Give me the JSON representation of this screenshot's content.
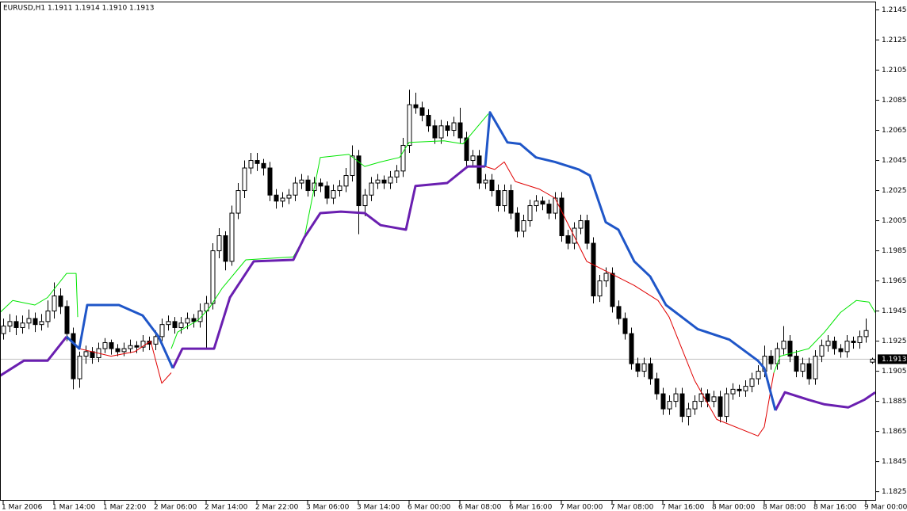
{
  "chart_data": {
    "type": "candlestick",
    "title": "EURUSD,H1  1.1911 1.1914 1.1910 1.1913",
    "last_price": 1.1913,
    "categories": [
      "1 Mar 2006",
      null,
      null,
      null,
      null,
      null,
      null,
      null,
      "1 Mar 14:00",
      null,
      null,
      null,
      null,
      null,
      null,
      null,
      "1 Mar 22:00",
      null,
      null,
      null,
      null,
      null,
      null,
      null,
      "2 Mar 06:00",
      null,
      null,
      null,
      null,
      null,
      null,
      null,
      "2 Mar 14:00",
      null,
      null,
      null,
      null,
      null,
      null,
      null,
      "2 Mar 22:00",
      null,
      null,
      null,
      null,
      null,
      null,
      null,
      "3 Mar 06:00",
      null,
      null,
      null,
      null,
      null,
      null,
      null,
      "3 Mar 14:00",
      null,
      null,
      null,
      null,
      null,
      null,
      null,
      "6 Mar 00:00",
      null,
      null,
      null,
      null,
      null,
      null,
      null,
      "6 Mar 08:00",
      null,
      null,
      null,
      null,
      null,
      null,
      null,
      "6 Mar 16:00",
      null,
      null,
      null,
      null,
      null,
      null,
      null,
      "7 Mar 00:00",
      null,
      null,
      null,
      null,
      null,
      null,
      null,
      "7 Mar 08:00",
      null,
      null,
      null,
      null,
      null,
      null,
      null,
      "7 Mar 16:00",
      null,
      null,
      null,
      null,
      null,
      null,
      null,
      "8 Mar 00:00",
      null,
      null,
      null,
      null,
      null,
      null,
      null,
      "8 Mar 08:00",
      null,
      null,
      null,
      null,
      null,
      null,
      null,
      "8 Mar 16:00",
      null,
      null,
      null,
      null,
      null,
      null,
      null,
      "9 Mar 00:00",
      null
    ],
    "ohlc": [
      [
        1.193,
        1.194,
        1.1926,
        1.1935
      ],
      [
        1.1935,
        1.1943,
        1.1931,
        1.1938
      ],
      [
        1.1938,
        1.1942,
        1.1929,
        1.1934
      ],
      [
        1.1934,
        1.1942,
        1.193,
        1.1937
      ],
      [
        1.1937,
        1.1946,
        1.1933,
        1.194
      ],
      [
        1.194,
        1.1944,
        1.1931,
        1.1936
      ],
      [
        1.1936,
        1.1943,
        1.1932,
        1.1938
      ],
      [
        1.1938,
        1.1952,
        1.1934,
        1.1945
      ],
      [
        1.1945,
        1.1964,
        1.194,
        1.1955
      ],
      [
        1.1955,
        1.196,
        1.1943,
        1.1948
      ],
      [
        1.1948,
        1.1952,
        1.1925,
        1.193
      ],
      [
        1.193,
        1.1934,
        1.1893,
        1.19
      ],
      [
        1.19,
        1.1918,
        1.1894,
        1.1915
      ],
      [
        1.1915,
        1.1922,
        1.191,
        1.1918
      ],
      [
        1.1918,
        1.1921,
        1.191,
        1.1914
      ],
      [
        1.1914,
        1.1924,
        1.1911,
        1.192
      ],
      [
        1.192,
        1.1927,
        1.1917,
        1.1924
      ],
      [
        1.1924,
        1.1926,
        1.1916,
        1.192
      ],
      [
        1.192,
        1.1923,
        1.1915,
        1.1918
      ],
      [
        1.1918,
        1.1924,
        1.1915,
        1.192
      ],
      [
        1.192,
        1.1926,
        1.1917,
        1.1922
      ],
      [
        1.1922,
        1.1925,
        1.1917,
        1.1921
      ],
      [
        1.1921,
        1.1929,
        1.1918,
        1.1925
      ],
      [
        1.1925,
        1.1928,
        1.1919,
        1.1923
      ],
      [
        1.1923,
        1.1932,
        1.1919,
        1.1928
      ],
      [
        1.1928,
        1.194,
        1.1925,
        1.1936
      ],
      [
        1.1936,
        1.1942,
        1.1932,
        1.1938
      ],
      [
        1.1938,
        1.1941,
        1.193,
        1.1934
      ],
      [
        1.1934,
        1.1941,
        1.193,
        1.1937
      ],
      [
        1.1937,
        1.1944,
        1.1933,
        1.194
      ],
      [
        1.194,
        1.1943,
        1.1934,
        1.1938
      ],
      [
        1.1938,
        1.195,
        1.1934,
        1.1945
      ],
      [
        1.1945,
        1.1955,
        1.192,
        1.195
      ],
      [
        1.195,
        1.199,
        1.1946,
        1.1985
      ],
      [
        1.1985,
        1.2,
        1.198,
        1.1995
      ],
      [
        1.1995,
        1.1998,
        1.1972,
        1.1978
      ],
      [
        1.1978,
        1.2015,
        1.1975,
        1.201
      ],
      [
        1.201,
        1.203,
        1.2006,
        1.2025
      ],
      [
        1.2025,
        1.2045,
        1.202,
        1.204
      ],
      [
        1.204,
        1.205,
        1.2036,
        1.2045
      ],
      [
        1.2045,
        1.205,
        1.2038,
        1.2043
      ],
      [
        1.2043,
        1.2046,
        1.2035,
        1.204
      ],
      [
        1.204,
        1.2044,
        1.2018,
        1.2022
      ],
      [
        1.2022,
        1.2026,
        1.2013,
        1.2018
      ],
      [
        1.2018,
        1.2024,
        1.2014,
        1.202
      ],
      [
        1.202,
        1.2026,
        1.2016,
        1.2022
      ],
      [
        1.2022,
        1.2034,
        1.2018,
        1.203
      ],
      [
        1.203,
        1.2036,
        1.2026,
        1.2032
      ],
      [
        1.2032,
        1.2035,
        1.2021,
        1.2025
      ],
      [
        1.2025,
        1.2034,
        1.2021,
        1.203
      ],
      [
        1.203,
        1.2033,
        1.2024,
        1.2028
      ],
      [
        1.2028,
        1.2031,
        1.2016,
        1.202
      ],
      [
        1.202,
        1.2029,
        1.2016,
        1.2025
      ],
      [
        1.2025,
        1.2032,
        1.2021,
        1.2028
      ],
      [
        1.2028,
        1.204,
        1.2024,
        1.2035
      ],
      [
        1.2035,
        1.2055,
        1.2031,
        1.2048
      ],
      [
        1.2048,
        1.2052,
        1.1996,
        1.2015
      ],
      [
        1.2015,
        1.2026,
        1.2008,
        1.2022
      ],
      [
        1.2022,
        1.2034,
        1.2018,
        1.203
      ],
      [
        1.203,
        1.2036,
        1.2026,
        1.2032
      ],
      [
        1.2032,
        1.2035,
        1.2026,
        1.203
      ],
      [
        1.203,
        1.2038,
        1.2026,
        1.2034
      ],
      [
        1.2034,
        1.2042,
        1.203,
        1.2038
      ],
      [
        1.2038,
        1.206,
        1.2034,
        1.2055
      ],
      [
        1.2055,
        1.2092,
        1.205,
        1.2082
      ],
      [
        1.2082,
        1.209,
        1.2076,
        1.208
      ],
      [
        1.208,
        1.2084,
        1.2071,
        1.2075
      ],
      [
        1.2075,
        1.2079,
        1.2064,
        1.2068
      ],
      [
        1.2068,
        1.2072,
        1.2056,
        1.206
      ],
      [
        1.206,
        1.2072,
        1.2056,
        1.2068
      ],
      [
        1.2068,
        1.2071,
        1.2061,
        1.2065
      ],
      [
        1.2065,
        1.2074,
        1.2061,
        1.207
      ],
      [
        1.207,
        1.208,
        1.2056,
        1.206
      ],
      [
        1.206,
        1.2064,
        1.2041,
        1.2045
      ],
      [
        1.2045,
        1.2052,
        1.2041,
        1.2048
      ],
      [
        1.2048,
        1.2052,
        1.2026,
        1.203
      ],
      [
        1.203,
        1.2036,
        1.2026,
        1.2032
      ],
      [
        1.2032,
        1.2036,
        1.2021,
        1.2025
      ],
      [
        1.2025,
        1.2029,
        1.2011,
        1.2015
      ],
      [
        1.2015,
        1.2029,
        1.2011,
        1.2025
      ],
      [
        1.2025,
        1.2029,
        1.2006,
        1.201
      ],
      [
        1.201,
        1.2014,
        1.1994,
        1.1998
      ],
      [
        1.1998,
        1.2009,
        1.1994,
        1.2005
      ],
      [
        1.2005,
        1.2019,
        1.2001,
        1.2015
      ],
      [
        1.2015,
        1.2022,
        1.2011,
        1.2018
      ],
      [
        1.2018,
        1.2021,
        1.2012,
        1.2016
      ],
      [
        1.2016,
        1.2019,
        1.2006,
        1.201
      ],
      [
        1.201,
        1.2024,
        1.2006,
        1.202
      ],
      [
        1.202,
        1.2024,
        1.1991,
        1.1995
      ],
      [
        1.1995,
        1.1999,
        1.1986,
        1.199
      ],
      [
        1.199,
        1.2004,
        1.1986,
        1.2
      ],
      [
        1.2,
        1.2009,
        1.1996,
        1.2005
      ],
      [
        1.2005,
        1.2009,
        1.1986,
        1.199
      ],
      [
        1.199,
        1.1994,
        1.195,
        1.1955
      ],
      [
        1.1955,
        1.1969,
        1.1951,
        1.1965
      ],
      [
        1.1965,
        1.1974,
        1.1961,
        1.197
      ],
      [
        1.197,
        1.1974,
        1.1944,
        1.1948
      ],
      [
        1.1948,
        1.1952,
        1.1936,
        1.194
      ],
      [
        1.194,
        1.1944,
        1.1926,
        1.193
      ],
      [
        1.193,
        1.1934,
        1.1906,
        1.191
      ],
      [
        1.191,
        1.1914,
        1.1901,
        1.1905
      ],
      [
        1.1905,
        1.1914,
        1.1901,
        1.191
      ],
      [
        1.191,
        1.1914,
        1.1896,
        1.19
      ],
      [
        1.19,
        1.1904,
        1.1886,
        1.189
      ],
      [
        1.189,
        1.1894,
        1.1876,
        1.188
      ],
      [
        1.188,
        1.1889,
        1.1876,
        1.1885
      ],
      [
        1.1885,
        1.1894,
        1.1881,
        1.189
      ],
      [
        1.189,
        1.1894,
        1.1871,
        1.1875
      ],
      [
        1.1875,
        1.1884,
        1.1869,
        1.188
      ],
      [
        1.188,
        1.1889,
        1.1876,
        1.1885
      ],
      [
        1.1885,
        1.1894,
        1.1881,
        1.189
      ],
      [
        1.189,
        1.1893,
        1.1881,
        1.1885
      ],
      [
        1.1885,
        1.1892,
        1.1881,
        1.1888
      ],
      [
        1.1888,
        1.1892,
        1.1871,
        1.1875
      ],
      [
        1.1875,
        1.1894,
        1.1871,
        1.189
      ],
      [
        1.189,
        1.1897,
        1.1886,
        1.1893
      ],
      [
        1.1893,
        1.1896,
        1.1888,
        1.1892
      ],
      [
        1.1892,
        1.1899,
        1.1888,
        1.1895
      ],
      [
        1.1895,
        1.1904,
        1.1891,
        1.19
      ],
      [
        1.19,
        1.1909,
        1.1896,
        1.1905
      ],
      [
        1.1905,
        1.1922,
        1.1901,
        1.1915
      ],
      [
        1.1915,
        1.1919,
        1.1906,
        1.191
      ],
      [
        1.191,
        1.1924,
        1.1906,
        1.192
      ],
      [
        1.192,
        1.1935,
        1.1916,
        1.1925
      ],
      [
        1.1925,
        1.1929,
        1.1911,
        1.1915
      ],
      [
        1.1915,
        1.1919,
        1.1901,
        1.1905
      ],
      [
        1.1905,
        1.1914,
        1.1901,
        1.191
      ],
      [
        1.191,
        1.1914,
        1.1896,
        1.19
      ],
      [
        1.19,
        1.1919,
        1.1896,
        1.1915
      ],
      [
        1.1915,
        1.1926,
        1.1911,
        1.1922
      ],
      [
        1.1922,
        1.1929,
        1.1918,
        1.1925
      ],
      [
        1.1925,
        1.1928,
        1.1916,
        1.192
      ],
      [
        1.192,
        1.1923,
        1.1914,
        1.1918
      ],
      [
        1.1918,
        1.1929,
        1.1914,
        1.1925
      ],
      [
        1.1925,
        1.1928,
        1.192,
        1.1924
      ],
      [
        1.1924,
        1.1932,
        1.192,
        1.1928
      ],
      [
        1.1928,
        1.194,
        1.1924,
        1.1932
      ],
      [
        1.1911,
        1.1914,
        1.191,
        1.1913
      ]
    ],
    "up_color": "#ffffff",
    "down_color": "#000000",
    "lines": [
      {
        "color": "#00e600",
        "width": 1,
        "x": [
          -0.5,
          1.5,
          5,
          7,
          10,
          11.5,
          11.75,
          19,
          26.5,
          27.5,
          30.75,
          32.5,
          34.5,
          38.25,
          45.75,
          47.5,
          50,
          54.5,
          57,
          59.5,
          62.5,
          64,
          69.5,
          72.5,
          76.5,
          99,
          121.5,
          122.5,
          127,
          129.5,
          132,
          134.5,
          136.5,
          137.5
        ],
        "values": [
          1.1944,
          1.1952,
          1.1949,
          1.1954,
          1.197,
          1.197,
          1.1941,
          null,
          1.192,
          1.1931,
          1.1939,
          1.1947,
          1.196,
          1.1979,
          1.1981,
          1.1994,
          1.2047,
          1.2049,
          1.2041,
          1.2044,
          1.2047,
          1.2057,
          1.2058,
          1.2056,
          1.2076,
          null,
          1.1904,
          1.1915,
          1.192,
          1.1931,
          1.1944,
          1.1952,
          1.1951,
          1.1944
        ]
      },
      {
        "color": "#e00000",
        "width": 1,
        "x": [
          12,
          17,
          20.75,
          23.25,
          25,
          26.5,
          50,
          76,
          77.5,
          79,
          80.75,
          84.5,
          87,
          89.5,
          92,
          95.75,
          99.5,
          103.25,
          105,
          107,
          109,
          112.5,
          119,
          120,
          121.5
        ],
        "values": [
          1.192,
          1.1915,
          1.1918,
          1.1925,
          1.1897,
          1.1904,
          null,
          1.2041,
          1.2039,
          1.2044,
          1.2031,
          1.2026,
          1.202,
          1.1999,
          1.1978,
          1.197,
          1.1962,
          1.1952,
          1.1941,
          1.192,
          1.1899,
          1.1873,
          1.1862,
          1.1868,
          1.1904
        ]
      },
      {
        "color": "#6a1fb0",
        "width": 3,
        "x": [
          -0.5,
          3.25,
          7,
          10,
          18,
          26.75,
          28.25,
          33.25,
          35.75,
          37,
          39.5,
          45.75,
          47.5,
          50,
          53.25,
          57,
          59.5,
          63.5,
          65,
          70,
          73.25,
          76,
          100,
          121.75,
          123.25,
          127,
          129.5,
          133.25,
          135.75,
          137.5
        ],
        "values": [
          1.1902,
          1.1912,
          1.1912,
          1.1928,
          null,
          1.1907,
          1.192,
          1.192,
          1.1954,
          1.1962,
          1.1978,
          1.1979,
          1.1994,
          1.201,
          1.2011,
          1.201,
          1.2002,
          1.1999,
          1.2028,
          1.203,
          1.2041,
          1.2041,
          null,
          1.1879,
          1.1891,
          1.1886,
          1.1883,
          1.1881,
          1.1886,
          1.1891
        ]
      },
      {
        "color": "#1f56c8",
        "width": 3,
        "x": [
          10,
          12,
          13.25,
          18.25,
          22,
          24.5,
          26.75,
          50,
          76,
          76.75,
          79.5,
          81.5,
          84,
          87,
          90.75,
          92.5,
          95,
          97,
          99.5,
          102,
          104.5,
          107,
          109.5,
          114.5,
          119,
          120,
          121.75
        ],
        "values": [
          1.1928,
          1.192,
          1.1949,
          1.1949,
          1.1942,
          1.1928,
          1.1907,
          null,
          1.2041,
          1.2077,
          1.2057,
          1.2056,
          1.2047,
          1.2044,
          1.2039,
          1.2035,
          1.2004,
          1.1999,
          1.1978,
          1.1968,
          1.1949,
          1.1941,
          1.1933,
          1.1926,
          1.1912,
          1.1907,
          1.1879
        ]
      }
    ],
    "xlim": [
      -0.5,
      137.625
    ],
    "ylim": [
      1.1819,
      1.215
    ],
    "yticks": [
      1.2145,
      1.2125,
      1.2105,
      1.2085,
      1.2065,
      1.2045,
      1.2025,
      1.2005,
      1.1985,
      1.1965,
      1.1945,
      1.1925,
      1.1905,
      1.1885,
      1.1865,
      1.1845,
      1.1825
    ]
  }
}
